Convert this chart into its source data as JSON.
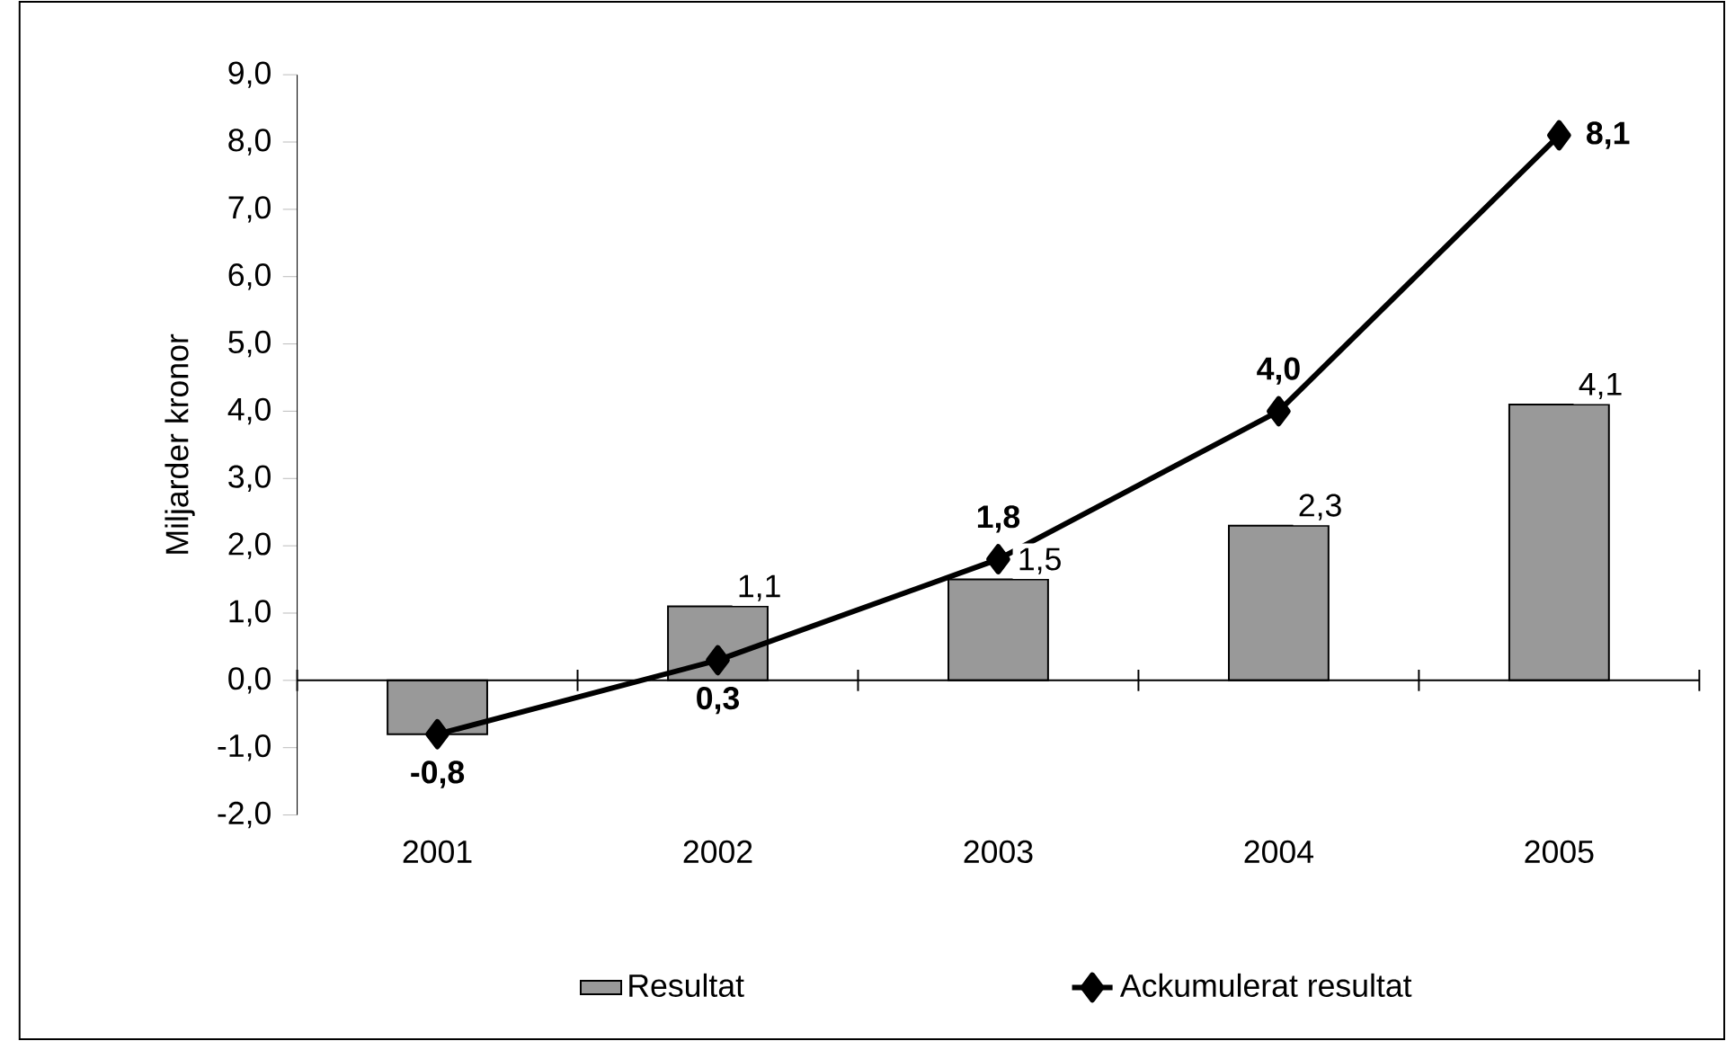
{
  "chart_data": {
    "type": "bar",
    "ylabel": "Miljarder kronor",
    "categories": [
      "2001",
      "2002",
      "2003",
      "2004",
      "2005"
    ],
    "series": [
      {
        "name": "Resultat",
        "color": "#999999",
        "values": [
          -0.8,
          1.1,
          1.5,
          2.3,
          4.1
        ],
        "value_labels": [
          null,
          "1,1",
          "1,5",
          "2,3",
          "4,1"
        ]
      },
      {
        "name": "Ackumulerat resultat",
        "type": "line",
        "color": "#000000",
        "marker": "diamond",
        "values": [
          -0.8,
          0.3,
          1.8,
          4.0,
          8.1
        ],
        "value_labels": [
          "-0,8",
          "0,3",
          "1,8",
          "4,0",
          "8,1"
        ]
      }
    ],
    "ylim": [
      -2,
      9
    ],
    "yticks": [
      {
        "value": -2,
        "label": "-2,0"
      },
      {
        "value": -1,
        "label": "-1,0"
      },
      {
        "value": 0,
        "label": "0,0"
      },
      {
        "value": 1,
        "label": "1,0"
      },
      {
        "value": 2,
        "label": "2,0"
      },
      {
        "value": 3,
        "label": "3,0"
      },
      {
        "value": 4,
        "label": "4,0"
      },
      {
        "value": 5,
        "label": "5,0"
      },
      {
        "value": 6,
        "label": "6,0"
      },
      {
        "value": 7,
        "label": "7,0"
      },
      {
        "value": 8,
        "label": "8,0"
      },
      {
        "value": 9,
        "label": "9,0"
      }
    ],
    "legend": "bottom"
  }
}
